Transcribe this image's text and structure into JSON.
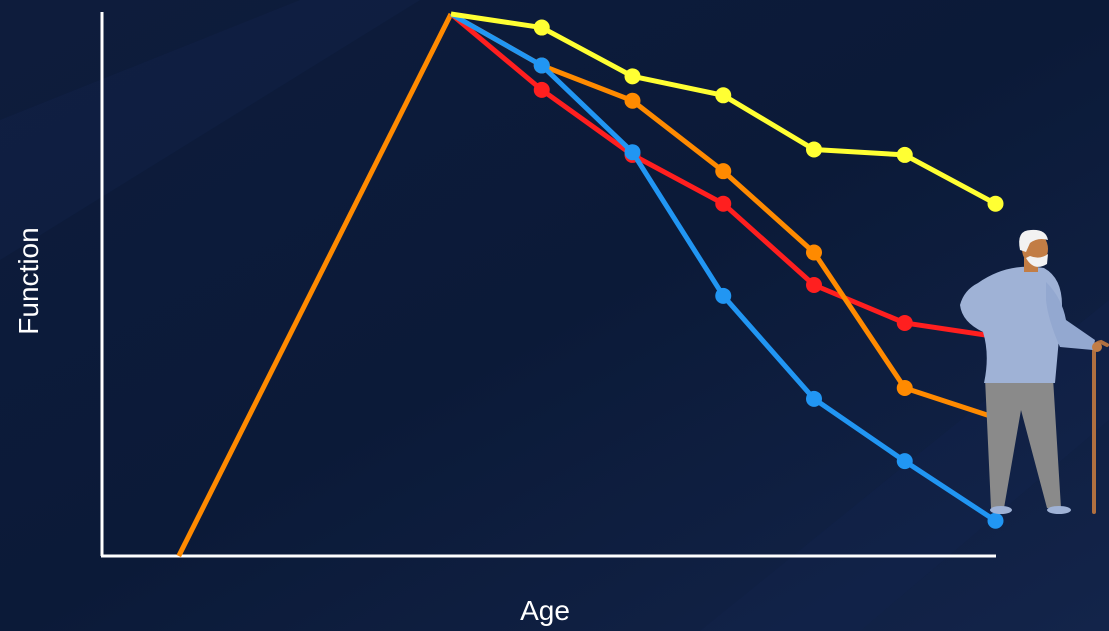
{
  "chart_data": {
    "type": "line",
    "title": "",
    "xlabel": "Age",
    "ylabel": "Function",
    "xlim": [
      0,
      10
    ],
    "ylim": [
      0,
      100
    ],
    "grid": false,
    "legend": "none",
    "series": [
      {
        "color": "#ff8a00",
        "points": [
          [
            1,
            0
          ],
          [
            4,
            100
          ]
        ],
        "markers": false
      },
      {
        "color": "#ff1f1f",
        "points": [
          [
            4,
            100
          ],
          [
            5,
            86
          ],
          [
            6,
            74
          ],
          [
            7,
            65
          ],
          [
            8,
            50
          ],
          [
            9,
            43
          ],
          [
            10,
            40.5
          ]
        ],
        "markers": true
      },
      {
        "color": "#ff8a00",
        "points": [
          [
            4,
            100
          ],
          [
            5,
            90.5
          ],
          [
            6,
            84
          ],
          [
            7,
            71
          ],
          [
            8,
            56
          ],
          [
            9,
            31
          ],
          [
            10,
            25.5
          ]
        ],
        "markers": true
      },
      {
        "color": "#2196f3",
        "points": [
          [
            4,
            100
          ],
          [
            5,
            90.5
          ],
          [
            6,
            74.5
          ],
          [
            7,
            48
          ],
          [
            8,
            29
          ],
          [
            9,
            17.5
          ],
          [
            10,
            6.5
          ]
        ],
        "markers": true
      },
      {
        "color": "#ffff33",
        "points": [
          [
            4,
            100
          ],
          [
            5,
            97.5
          ],
          [
            6,
            88.5
          ],
          [
            7,
            85
          ],
          [
            8,
            75
          ],
          [
            9,
            74
          ],
          [
            10,
            65
          ]
        ],
        "markers": true
      }
    ]
  },
  "colors": {
    "background": "#0f1d3d",
    "axis": "#ffffff",
    "text": "#ffffff"
  },
  "illustration": {
    "icon": "elderly-man-with-cane-icon"
  }
}
